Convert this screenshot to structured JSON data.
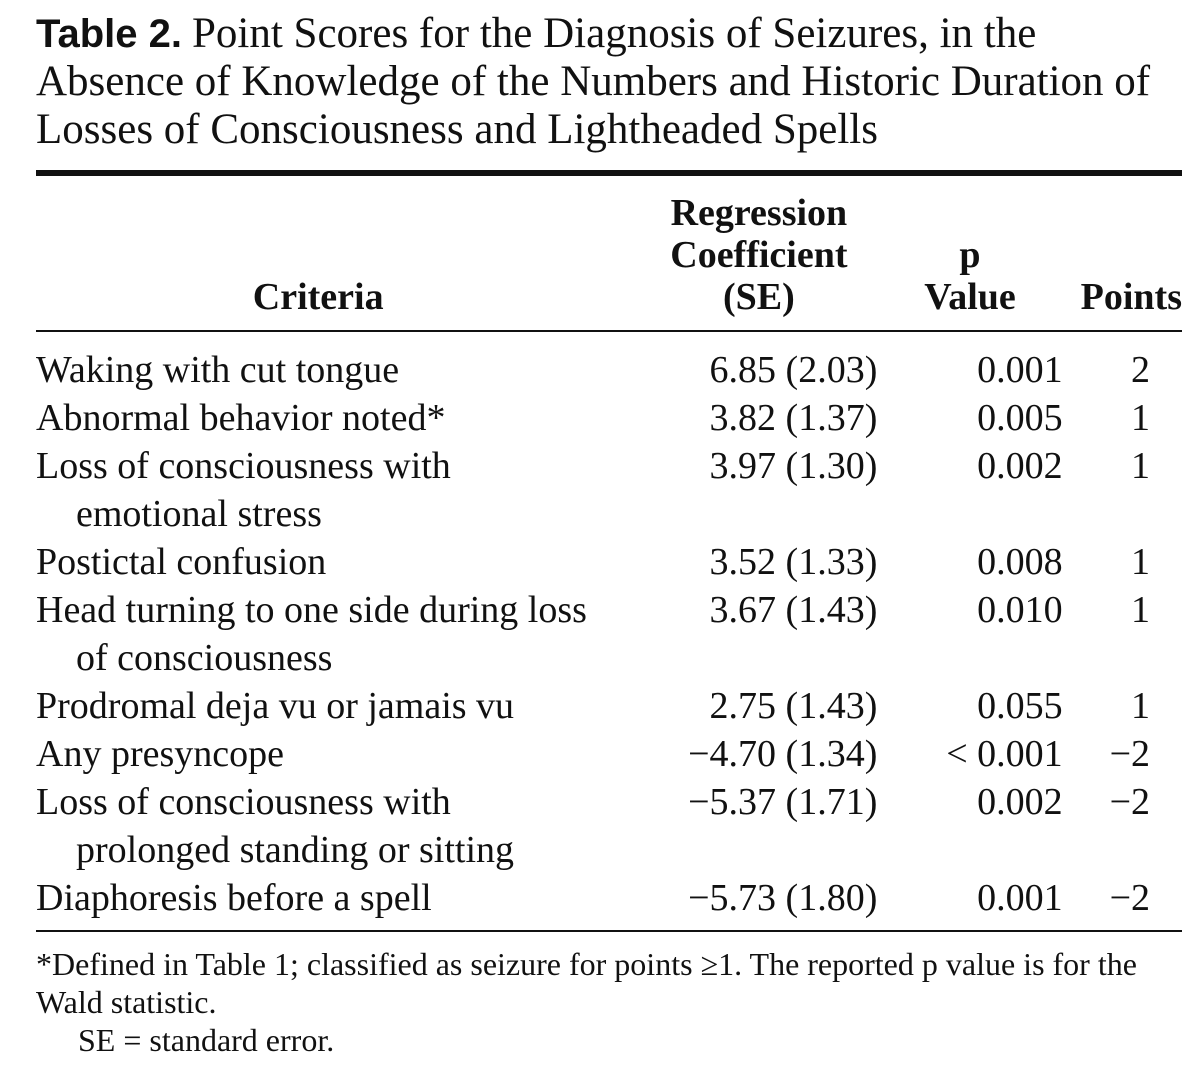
{
  "title": {
    "label": "Table 2.",
    "text": "Point Scores for the Diagnosis of Seizures, in the Absence of Knowledge of the Numbers and Historic Duration of Losses of Consciousness and Lightheaded Spells"
  },
  "table": {
    "columns": [
      "Criteria",
      "Regression Coefficient (SE)",
      "p Value",
      "Points"
    ],
    "rows": [
      [
        "Waking with cut tongue",
        "6.85 (2.03)",
        "0.001",
        "2"
      ],
      [
        "Abnormal behavior noted*",
        "3.82 (1.37)",
        "0.005",
        "1"
      ],
      [
        "Loss of consciousness with emotional stress",
        "3.97 (1.30)",
        "0.002",
        "1"
      ],
      [
        "Postictal confusion",
        "3.52 (1.33)",
        "0.008",
        "1"
      ],
      [
        "Head turning to one side during loss of consciousness",
        "3.67 (1.43)",
        "0.010",
        "1"
      ],
      [
        "Prodromal deja vu or jamais vu",
        "2.75 (1.43)",
        "0.055",
        "1"
      ],
      [
        "Any presyncope",
        "−4.70 (1.34)",
        "< 0.001",
        "−2"
      ],
      [
        "Loss of consciousness with prolonged standing or sitting",
        "−5.37 (1.71)",
        "0.002",
        "−2"
      ],
      [
        "Diaphoresis before a spell",
        "−5.73 (1.80)",
        "0.001",
        "−2"
      ]
    ]
  },
  "footnotes": [
    "*Defined in Table 1; classified as seizure for points ≥1. The reported p value is for the Wald statistic.",
    "SE = standard error."
  ]
}
